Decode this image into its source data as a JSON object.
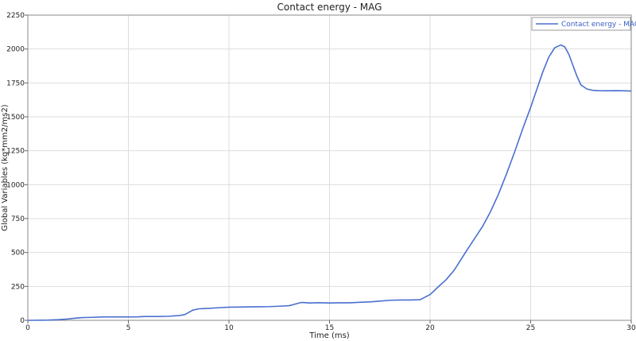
{
  "chart_data": {
    "type": "line",
    "title": "Contact energy - MAG",
    "xlabel": "Time (ms)",
    "ylabel": "Global Variables (kg*mm2/ms2)",
    "xlim": [
      0,
      30
    ],
    "ylim": [
      0,
      2250
    ],
    "xticks": [
      0,
      5,
      10,
      15,
      20,
      25,
      30
    ],
    "yticks": [
      0,
      250,
      500,
      750,
      1000,
      1250,
      1500,
      1750,
      2000,
      2250
    ],
    "xtick_labels": [
      "0",
      "5",
      "10",
      "15",
      "20",
      "25",
      "30"
    ],
    "ytick_labels": [
      "0",
      "250",
      "500",
      "750",
      "1000",
      "1250",
      "1500",
      "1750",
      "2000",
      "2250"
    ],
    "grid": true,
    "legend_position": "top-right",
    "series": [
      {
        "name": "Contact energy - MAG",
        "color": "#4a6fd0",
        "x": [
          0,
          1,
          1.5,
          2,
          2.3,
          2.7,
          3.2,
          3.5,
          4,
          5,
          5.5,
          5.8,
          6.5,
          7,
          7.5,
          7.8,
          8,
          8.2,
          8.5,
          9,
          9.5,
          10,
          10.5,
          11,
          11.5,
          12,
          12.5,
          13,
          13.3,
          13.6,
          14,
          14.5,
          15,
          15.5,
          16,
          16.5,
          17,
          17.5,
          18,
          18.5,
          19,
          19.5,
          20,
          20.5,
          20.8,
          21.2,
          21.5,
          21.8,
          22.2,
          22.6,
          23,
          23.4,
          23.8,
          24.2,
          24.6,
          25,
          25.3,
          25.6,
          25.9,
          26.2,
          26.5,
          26.7,
          26.9,
          27.1,
          27.3,
          27.5,
          27.8,
          28.1,
          28.4,
          28.8,
          29.2,
          29.6,
          30
        ],
        "y": [
          0,
          2,
          5,
          10,
          15,
          20,
          22,
          24,
          25,
          25,
          26,
          28,
          28,
          30,
          35,
          42,
          58,
          75,
          85,
          88,
          93,
          97,
          98,
          99,
          100,
          101,
          104,
          108,
          120,
          132,
          128,
          130,
          128,
          129,
          129,
          133,
          136,
          142,
          148,
          150,
          150,
          152,
          190,
          260,
          300,
          370,
          440,
          510,
          600,
          690,
          800,
          930,
          1080,
          1240,
          1410,
          1570,
          1700,
          1830,
          1940,
          2010,
          2030,
          2015,
          1960,
          1880,
          1800,
          1735,
          1705,
          1695,
          1693,
          1692,
          1693,
          1692,
          1690
        ]
      }
    ]
  }
}
